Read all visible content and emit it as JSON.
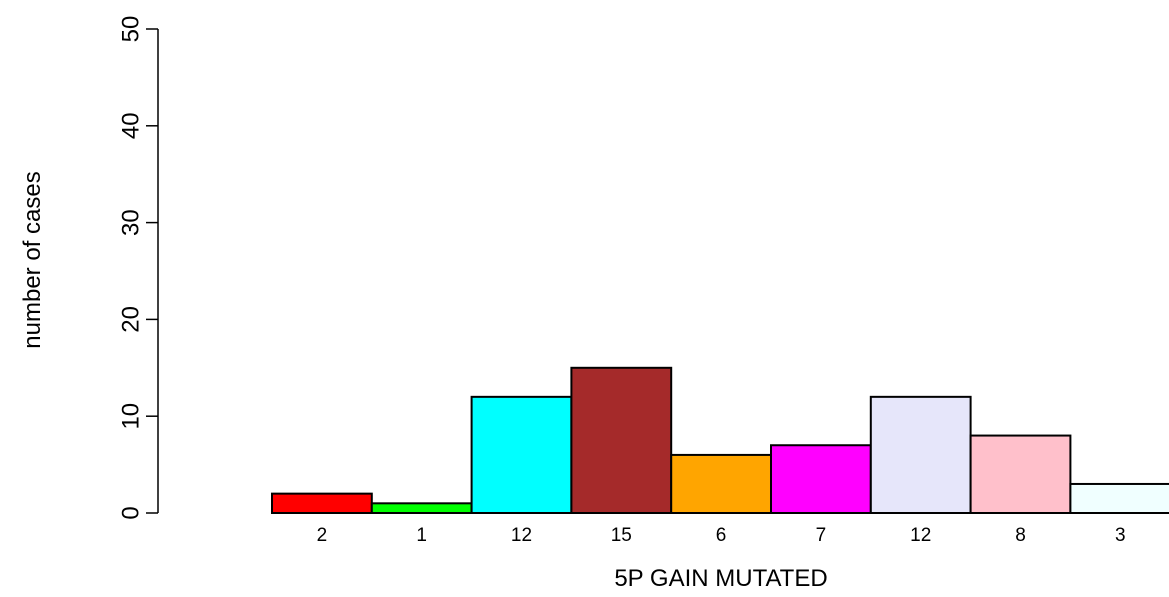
{
  "chart_data": {
    "type": "bar",
    "title": "",
    "xlabel": "5P GAIN MUTATED",
    "ylabel": "number of cases",
    "ylim": [
      0,
      50
    ],
    "yticks": [
      0,
      10,
      20,
      30,
      40,
      50
    ],
    "values": [
      2,
      1,
      12,
      15,
      6,
      7,
      12,
      8,
      3
    ],
    "value_labels": [
      "2",
      "1",
      "12",
      "15",
      "6",
      "7",
      "12",
      "8",
      "3"
    ],
    "colors": [
      "#ff0000",
      "#00ff00",
      "#00ffff",
      "#a52a2a",
      "#ffa500",
      "#ff00ff",
      "#e6e6fa",
      "#ffc0cb",
      "#f0ffff"
    ],
    "grid": false,
    "legend": "none"
  }
}
